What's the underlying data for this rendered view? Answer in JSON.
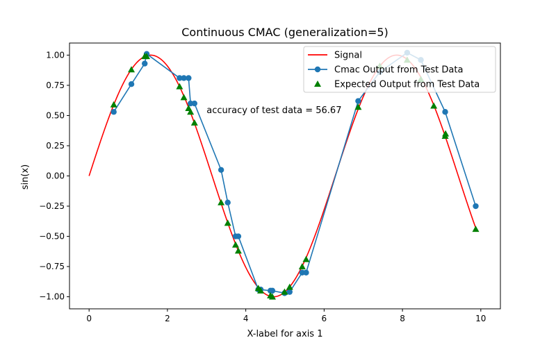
{
  "chart_data": {
    "type": "line",
    "title": "Continuous CMAC (generalization=5)",
    "xlabel": "X-label for axis 1",
    "ylabel": "sin(x)",
    "xlim": [
      -0.5,
      10.5
    ],
    "ylim": [
      -1.1,
      1.1
    ],
    "xticks": [
      0,
      2,
      4,
      6,
      8,
      10
    ],
    "xtick_labels": [
      "0",
      "2",
      "4",
      "6",
      "8",
      "10"
    ],
    "yticks": [
      -1.0,
      -0.75,
      -0.5,
      -0.25,
      0.0,
      0.25,
      0.5,
      0.75,
      1.0
    ],
    "ytick_labels": [
      "−1.00",
      "−0.75",
      "−0.50",
      "−0.25",
      "0.00",
      "0.25",
      "0.50",
      "0.75",
      "1.00"
    ],
    "grid": false,
    "legend_position": "top-right",
    "annotation": "accuracy of test data =  56.67",
    "annotation_anchor": [
      3.0,
      0.52
    ],
    "series": [
      {
        "name": "Signal",
        "kind": "function",
        "function": "sin",
        "x_range": [
          0,
          9.9
        ],
        "color": "#ff0000"
      },
      {
        "name": "Cmac Output from Test Data",
        "kind": "line-marker",
        "color": "#1f77b4",
        "x": [
          0.63,
          1.08,
          1.42,
          1.47,
          2.31,
          2.42,
          2.54,
          2.59,
          2.69,
          3.37,
          3.54,
          3.74,
          3.81,
          4.32,
          4.38,
          4.63,
          4.68,
          4.99,
          5.12,
          5.44,
          5.54,
          6.87,
          7.42,
          8.12,
          8.47,
          9.09,
          9.87
        ],
        "y": [
          0.53,
          0.76,
          0.93,
          1.01,
          0.81,
          0.81,
          0.81,
          0.6,
          0.6,
          0.05,
          -0.22,
          -0.5,
          -0.5,
          -0.94,
          -0.94,
          -0.95,
          -0.95,
          -0.97,
          -0.96,
          -0.8,
          -0.8,
          0.62,
          0.86,
          1.02,
          0.96,
          0.53,
          -0.25
        ]
      },
      {
        "name": "Expected Output from Test Data",
        "kind": "scatter-triangle",
        "color": "#008000",
        "x": [
          0.63,
          1.08,
          1.42,
          1.47,
          2.31,
          2.42,
          2.54,
          2.59,
          2.69,
          3.37,
          3.54,
          3.74,
          3.81,
          4.32,
          4.38,
          4.63,
          4.68,
          4.99,
          5.12,
          5.44,
          5.54,
          6.87,
          7.42,
          8.12,
          8.47,
          8.8,
          9.09,
          9.1,
          9.87
        ],
        "y": [
          0.59,
          0.88,
          0.99,
          0.99,
          0.74,
          0.65,
          0.56,
          0.53,
          0.44,
          -0.22,
          -0.39,
          -0.57,
          -0.62,
          -0.93,
          -0.95,
          -0.99,
          -1.0,
          -0.96,
          -0.92,
          -0.75,
          -0.69,
          0.57,
          0.91,
          0.96,
          0.8,
          0.58,
          0.33,
          0.35,
          -0.44
        ]
      }
    ]
  }
}
